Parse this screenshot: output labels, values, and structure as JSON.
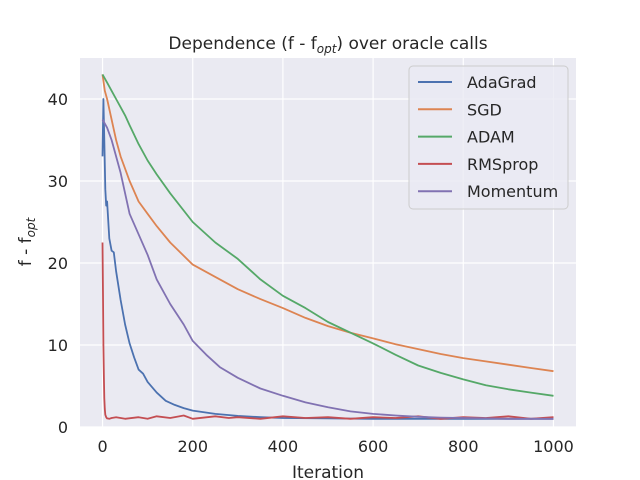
{
  "chart_data": {
    "type": "line",
    "title": "Dependence (f - f",
    "title_sub": "opt",
    "title_suffix": ") over oracle calls",
    "xlabel": "Iteration",
    "ylabel": "f - f",
    "ylabel_sub": "opt",
    "xlim": [
      -50,
      1050
    ],
    "ylim": [
      0,
      45
    ],
    "xticks": [
      0,
      200,
      400,
      600,
      800,
      1000
    ],
    "yticks": [
      0,
      10,
      20,
      30,
      40
    ],
    "grid": true,
    "legend_position": "top-right",
    "series": [
      {
        "name": "AdaGrad",
        "color": "#4c72b0",
        "x": [
          0,
          2,
          4,
          6,
          8,
          10,
          15,
          20,
          25,
          30,
          40,
          50,
          60,
          70,
          80,
          90,
          100,
          120,
          140,
          160,
          180,
          200,
          250,
          300,
          350,
          400,
          500,
          600,
          700,
          800,
          900,
          1000
        ],
        "y": [
          33,
          40,
          35,
          29,
          27,
          27.5,
          23,
          21.5,
          21.3,
          19,
          15.5,
          12.5,
          10.2,
          8.5,
          7,
          6.5,
          5.5,
          4.2,
          3.2,
          2.7,
          2.3,
          2.0,
          1.6,
          1.35,
          1.2,
          1.1,
          1.05,
          1.0,
          1.0,
          1.0,
          1.0,
          1.0
        ]
      },
      {
        "name": "SGD",
        "color": "#dd8452",
        "x": [
          0,
          5,
          10,
          20,
          30,
          40,
          50,
          60,
          80,
          100,
          120,
          150,
          200,
          250,
          300,
          350,
          400,
          450,
          500,
          550,
          600,
          650,
          700,
          750,
          800,
          850,
          900,
          950,
          1000
        ],
        "y": [
          43,
          41,
          40,
          37.5,
          35,
          33,
          31.5,
          30,
          27.5,
          26,
          24.5,
          22.5,
          19.8,
          18.3,
          16.8,
          15.6,
          14.5,
          13.3,
          12.3,
          11.5,
          10.8,
          10.1,
          9.5,
          8.9,
          8.4,
          8.0,
          7.6,
          7.2,
          6.8
        ]
      },
      {
        "name": "ADAM",
        "color": "#55a868",
        "x": [
          0,
          10,
          20,
          30,
          40,
          50,
          60,
          80,
          100,
          120,
          150,
          200,
          250,
          300,
          350,
          400,
          450,
          500,
          550,
          600,
          650,
          700,
          750,
          800,
          850,
          900,
          950,
          1000
        ],
        "y": [
          43,
          42,
          41,
          40,
          39,
          38,
          36.8,
          34.5,
          32.5,
          30.8,
          28.5,
          25,
          22.5,
          20.5,
          18,
          16,
          14.5,
          12.8,
          11.5,
          10.2,
          8.8,
          7.5,
          6.6,
          5.8,
          5.1,
          4.6,
          4.2,
          3.8
        ]
      },
      {
        "name": "RMSprop",
        "color": "#c44e52",
        "x": [
          0,
          1,
          2,
          3,
          4,
          5,
          6,
          8,
          10,
          15,
          20,
          30,
          50,
          80,
          100,
          120,
          150,
          180,
          200,
          250,
          280,
          300,
          350,
          400,
          450,
          500,
          550,
          600,
          650,
          700,
          750,
          800,
          850,
          900,
          950,
          1000
        ],
        "y": [
          22.5,
          16,
          10,
          6,
          3.5,
          2.2,
          1.5,
          1.2,
          1.05,
          1.0,
          1.1,
          1.2,
          1.0,
          1.2,
          1.0,
          1.3,
          1.1,
          1.4,
          1.0,
          1.3,
          1.1,
          1.2,
          1.0,
          1.3,
          1.1,
          1.2,
          1.0,
          1.2,
          1.1,
          1.3,
          1.0,
          1.2,
          1.1,
          1.3,
          1.0,
          1.2
        ]
      },
      {
        "name": "Momentum",
        "color": "#8172b2",
        "x": [
          0,
          10,
          20,
          30,
          40,
          50,
          60,
          80,
          100,
          120,
          150,
          180,
          200,
          230,
          260,
          300,
          350,
          400,
          450,
          500,
          550,
          600,
          650,
          700,
          750,
          800,
          850,
          900,
          950,
          1000
        ],
        "y": [
          37.5,
          36.5,
          35,
          33,
          31,
          28.5,
          26,
          23.5,
          21,
          18,
          15,
          12.5,
          10.5,
          8.8,
          7.3,
          6,
          4.7,
          3.8,
          3.0,
          2.4,
          1.9,
          1.6,
          1.4,
          1.25,
          1.15,
          1.1,
          1.05,
          1.0,
          1.0,
          1.0
        ]
      }
    ]
  }
}
